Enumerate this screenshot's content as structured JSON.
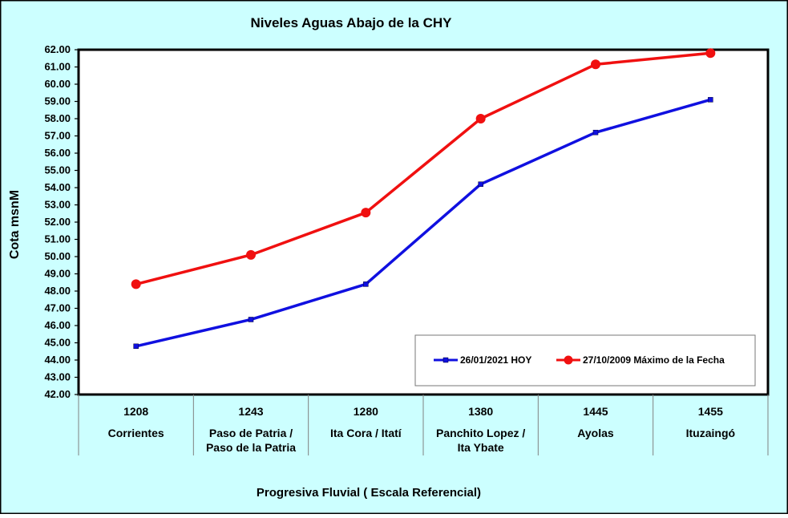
{
  "chart_data": {
    "type": "line",
    "title": "Niveles Aguas Abajo de la CHY",
    "ylabel": "Cota msnM",
    "xlabel": "Progresiva Fluvial ( Escala Referencial)",
    "ylim": [
      42.0,
      62.0
    ],
    "ystep": 1.0,
    "yticks": [
      "42.00",
      "43.00",
      "44.00",
      "45.00",
      "46.00",
      "47.00",
      "48.00",
      "49.00",
      "50.00",
      "51.00",
      "52.00",
      "53.00",
      "54.00",
      "55.00",
      "56.00",
      "57.00",
      "58.00",
      "59.00",
      "60.00",
      "61.00",
      "62.00"
    ],
    "categories": [
      {
        "km": "1208",
        "line1": "Corrientes",
        "line2": ""
      },
      {
        "km": "1243",
        "line1": "Paso de Patria /",
        "line2": "Paso de la Patria"
      },
      {
        "km": "1280",
        "line1": "Ita Cora / Itatí",
        "line2": ""
      },
      {
        "km": "1380",
        "line1": "Panchito Lopez /",
        "line2": "Ita Ybate"
      },
      {
        "km": "1445",
        "line1": "Ayolas",
        "line2": ""
      },
      {
        "km": "1455",
        "line1": "Ituzaingó",
        "line2": ""
      }
    ],
    "series": [
      {
        "name": "26/01/2021 HOY",
        "color": "#1010e0",
        "marker": "square",
        "values": [
          44.8,
          46.35,
          48.4,
          54.2,
          57.2,
          59.1
        ]
      },
      {
        "name": "27/10/2009 Máximo de la Fecha",
        "color": "#f01010",
        "marker": "circle",
        "values": [
          48.4,
          50.1,
          52.55,
          58.0,
          61.15,
          61.8
        ]
      }
    ],
    "grid": false,
    "legend": "bottom-right",
    "colors": {
      "outer_bg": "#ccffff",
      "plot_bg": "#ffffff",
      "border": "#000000"
    }
  }
}
